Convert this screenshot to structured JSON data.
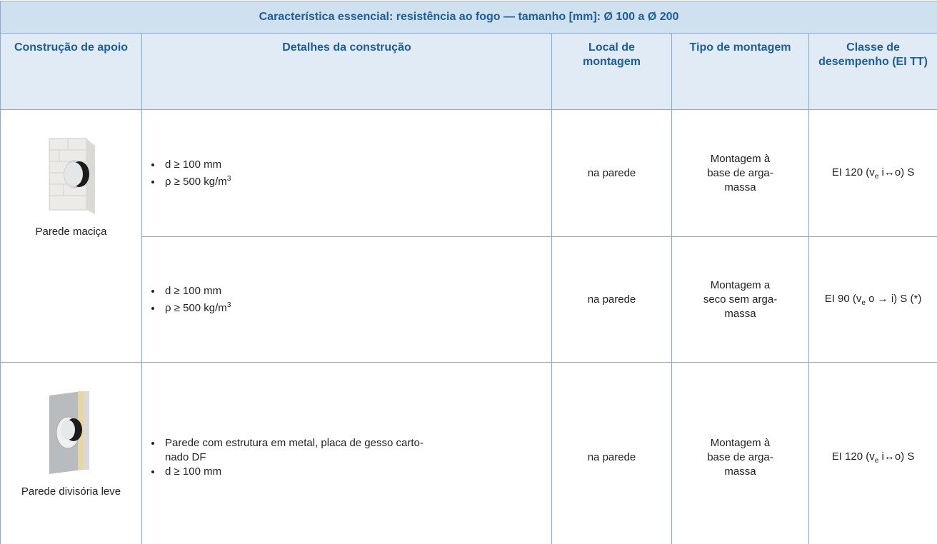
{
  "header": {
    "title": "Característica essencial: resistência ao fogo — tamanho [mm]: Ø 100 a Ø 200"
  },
  "table": {
    "columns": [
      "Construção de apoio",
      "Detalhes da construção",
      "Local de montagem",
      "Tipo de montagem",
      "Classe de desempenho (EI TT)"
    ],
    "groups": [
      {
        "support": "Parede maciça",
        "rows": [
          {
            "details": [
              {
                "text": "d ≥ 100 mm"
              },
              {
                "text": "ρ ≥ 500 kg/m",
                "sup": "3"
              }
            ],
            "location": "na parede",
            "mounting": [
              "Montagem à",
              "base de arga-",
              "massa"
            ],
            "class": {
              "pre": "EI 120 (v",
              "sub": "e",
              "post": " i↔o) S"
            }
          },
          {
            "details": [
              {
                "text": "d ≥ 100 mm"
              },
              {
                "text": "ρ ≥ 500 kg/m",
                "sup": "3"
              }
            ],
            "location": "na parede",
            "mounting": [
              "Montagem a",
              "seco sem arga-",
              "massa"
            ],
            "class": {
              "pre": "EI 90 (v",
              "sub": "e",
              "post": " o → i) S (*)"
            }
          }
        ]
      },
      {
        "support": "Parede divisória leve",
        "rows": [
          {
            "details": [
              {
                "lines": [
                  "Parede com estrutura em metal, placa de gesso carto-",
                  "nado DF"
                ]
              },
              {
                "text": "d ≥ 100 mm"
              }
            ],
            "location": "na parede",
            "mounting": [
              "Montagem à",
              "base de arga-",
              "massa"
            ],
            "class": {
              "pre": "EI 120 (v",
              "sub": "e",
              "post": " i↔o) S"
            }
          }
        ]
      }
    ]
  }
}
